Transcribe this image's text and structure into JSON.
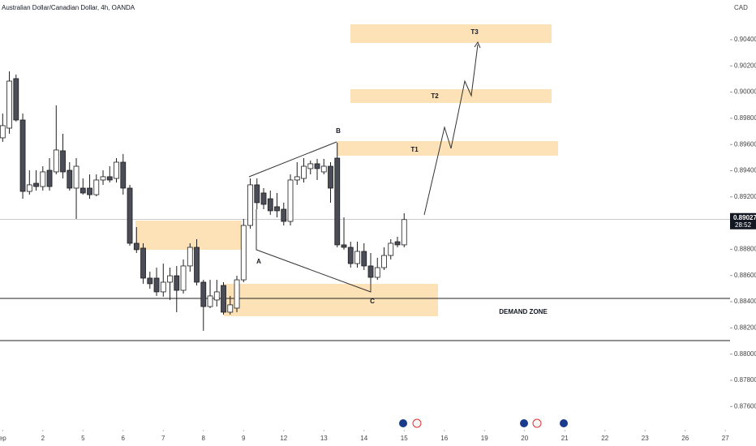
{
  "chart_data": {
    "type": "candlestick",
    "title": "Australian Dollar/Canadian Dollar, 4h, OANDA",
    "currency": "CAD",
    "countdown": "28:52",
    "up_color": "#ffffff",
    "down_color": "#4a4d57",
    "wick_color": "#1e1e1e",
    "open": [
      0.89651,
      0.89725,
      0.90103,
      0.89787,
      0.89242,
      0.89304,
      0.89279,
      0.89403,
      0.89391,
      0.89552,
      0.89403,
      0.89267,
      0.89267,
      0.89267,
      0.89217,
      0.89329,
      0.89354,
      0.89341,
      0.89465,
      0.89267,
      0.88846,
      0.88809,
      0.8858,
      0.8858,
      0.88475,
      0.88549,
      0.88598,
      0.88487,
      0.88673,
      0.88815,
      0.88549,
      0.88363,
      0.88413,
      0.88524,
      0.8832,
      0.88351,
      0.88567,
      0.88982,
      0.89292,
      0.8923,
      0.89186,
      0.89125,
      0.89106,
      0.89013,
      0.89329,
      0.89341,
      0.89416,
      0.89453,
      0.89391,
      0.89434,
      0.89496,
      0.88834,
      0.88815,
      0.88691,
      0.88784,
      0.88673,
      0.88586,
      0.8866,
      0.88753,
      0.88858,
      0.88834
    ],
    "high": [
      0.89836,
      0.90158,
      0.90134,
      0.89836,
      0.89403,
      0.89403,
      0.89434,
      0.89496,
      0.89898,
      0.89682,
      0.89465,
      0.89496,
      0.89341,
      0.89372,
      0.89372,
      0.89403,
      0.89434,
      0.89496,
      0.89527,
      0.89292,
      0.8897,
      0.88846,
      0.88629,
      0.8866,
      0.88691,
      0.8866,
      0.88673,
      0.88722,
      0.88846,
      0.88877,
      0.88567,
      0.88567,
      0.88567,
      0.88549,
      0.88444,
      0.88598,
      0.89032,
      0.89341,
      0.89341,
      0.89267,
      0.89248,
      0.8923,
      0.89156,
      0.89372,
      0.89465,
      0.89496,
      0.89477,
      0.8949,
      0.8949,
      0.89465,
      0.89614,
      0.89044,
      0.88858,
      0.88858,
      0.88846,
      0.88772,
      0.88735,
      0.88815,
      0.88877,
      0.88896,
      0.89075
    ],
    "low": [
      0.8962,
      0.89682,
      0.89775,
      0.89186,
      0.89217,
      0.89248,
      0.89248,
      0.89248,
      0.89372,
      0.89341,
      0.89248,
      0.89032,
      0.89217,
      0.89186,
      0.89205,
      0.89292,
      0.8931,
      0.8931,
      0.89217,
      0.88827,
      0.88772,
      0.88537,
      0.88499,
      0.88444,
      0.88438,
      0.88413,
      0.8832,
      0.88462,
      0.88629,
      0.88524,
      0.88178,
      0.88351,
      0.88363,
      0.88301,
      0.88301,
      0.8832,
      0.88549,
      0.88957,
      0.89106,
      0.89106,
      0.89063,
      0.89044,
      0.88982,
      0.88982,
      0.89292,
      0.8931,
      0.89372,
      0.89329,
      0.89372,
      0.89156,
      0.88815,
      0.88797,
      0.8866,
      0.8866,
      0.88642,
      0.88537,
      0.88567,
      0.88642,
      0.88722,
      0.88815,
      0.88815
    ],
    "close": [
      0.89744,
      0.90084,
      0.89787,
      0.89242,
      0.89292,
      0.89279,
      0.89391,
      0.89279,
      0.89558,
      0.89391,
      0.89267,
      0.89434,
      0.8923,
      0.89217,
      0.89329,
      0.89354,
      0.89329,
      0.89465,
      0.89267,
      0.88846,
      0.88797,
      0.8858,
      0.88537,
      0.88475,
      0.88549,
      0.88598,
      0.88487,
      0.88673,
      0.88815,
      0.88549,
      0.88363,
      0.88444,
      0.88475,
      0.8832,
      0.88376,
      0.88567,
      0.88982,
      0.89292,
      0.89156,
      0.89143,
      0.89094,
      0.89094,
      0.89013,
      0.89329,
      0.89354,
      0.89434,
      0.89453,
      0.89416,
      0.89434,
      0.89267,
      0.88834,
      0.88815,
      0.88691,
      0.88784,
      0.88673,
      0.88586,
      0.8866,
      0.88753,
      0.88846,
      0.88834,
      0.89027
    ],
    "annotations": [
      "T3",
      "T2",
      "T1",
      "B",
      "A",
      "C",
      "DEMAND ZONE"
    ],
    "xlim": [
      -0.4,
      108.7
    ],
    "xticks": [
      {
        "value": 0,
        "label": "ep"
      },
      {
        "value": 6,
        "label": "2"
      },
      {
        "value": 12,
        "label": "5"
      },
      {
        "value": 18,
        "label": "6"
      },
      {
        "value": 24,
        "label": "7"
      },
      {
        "value": 30,
        "label": "8"
      },
      {
        "value": 36,
        "label": "9"
      },
      {
        "value": 42,
        "label": "12"
      },
      {
        "value": 48,
        "label": "13"
      },
      {
        "value": 54,
        "label": "14"
      },
      {
        "value": 60,
        "label": "15"
      },
      {
        "value": 66,
        "label": "16"
      },
      {
        "value": 72,
        "label": "19"
      },
      {
        "value": 78,
        "label": "20"
      },
      {
        "value": 84,
        "label": "21"
      },
      {
        "value": 90,
        "label": "22"
      },
      {
        "value": 96,
        "label": "23"
      },
      {
        "value": 102,
        "label": "26"
      },
      {
        "value": 108,
        "label": "27"
      }
    ],
    "ylim": [
      0.87478,
      0.90703
    ],
    "yticks": [
      {
        "value": 0.904,
        "label": "0.90400"
      },
      {
        "value": 0.902,
        "label": "0.90200"
      },
      {
        "value": 0.9,
        "label": "0.90000"
      },
      {
        "value": 0.898,
        "label": "0.89800"
      },
      {
        "value": 0.896,
        "label": "0.89600"
      },
      {
        "value": 0.894,
        "label": "0.89400"
      },
      {
        "value": 0.892,
        "label": "0.89200"
      },
      {
        "value": 0.89,
        "label": "0.89000"
      },
      {
        "value": 0.888,
        "label": "0.88800"
      },
      {
        "value": 0.886,
        "label": "0.88600"
      },
      {
        "value": 0.884,
        "label": "0.88400"
      },
      {
        "value": 0.882,
        "label": "0.88200"
      },
      {
        "value": 0.88,
        "label": "0.88000"
      },
      {
        "value": 0.878,
        "label": "0.87800"
      },
      {
        "value": 0.876,
        "label": "0.87600"
      }
    ]
  }
}
